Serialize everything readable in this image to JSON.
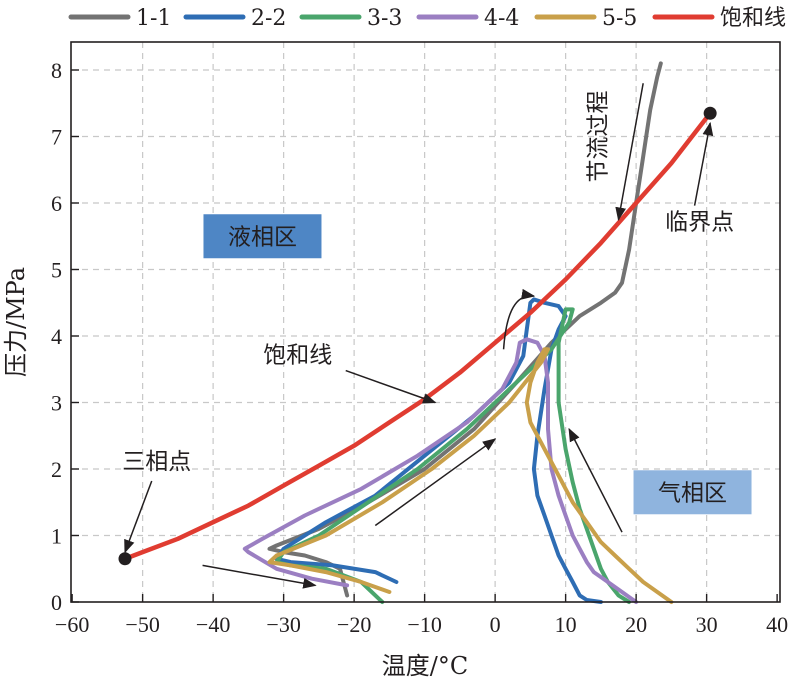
{
  "chart_data": {
    "type": "line",
    "title": "",
    "xlabel": "温度/°C",
    "ylabel": "压力/MPa",
    "xlim": [
      -60,
      40
    ],
    "ylim": [
      0,
      8.3
    ],
    "xticks": [
      -60,
      -50,
      -40,
      -30,
      -20,
      -10,
      0,
      10,
      20,
      30,
      40
    ],
    "yticks": [
      0,
      1,
      2,
      3,
      4,
      5,
      6,
      7,
      8
    ],
    "xtick_labels": [
      "−60",
      "−50",
      "−40",
      "−30",
      "−20",
      "−10",
      "0",
      "10",
      "20",
      "30",
      "40"
    ],
    "ytick_labels": [
      "0",
      "1",
      "2",
      "3",
      "4",
      "5",
      "6",
      "7",
      "8"
    ],
    "grid": true,
    "legend_position": "top",
    "series": [
      {
        "name": "1-1",
        "color": "#737373",
        "x": [
          -21,
          -21.5,
          -22,
          -24,
          -27,
          -30,
          -32,
          -31,
          -25,
          -18,
          -10,
          -3,
          3,
          8,
          12,
          15,
          17,
          18,
          19,
          20,
          21,
          22,
          23,
          23.5
        ],
        "y": [
          0.1,
          0.3,
          0.5,
          0.6,
          0.7,
          0.75,
          0.8,
          0.85,
          1.1,
          1.5,
          2.0,
          2.6,
          3.3,
          3.9,
          4.3,
          4.5,
          4.65,
          4.8,
          5.3,
          6.0,
          6.7,
          7.4,
          7.9,
          8.1
        ]
      },
      {
        "name": "2-2",
        "color": "#2e6db4",
        "x": [
          -14,
          -17,
          -23,
          -29,
          -31,
          -30,
          -24,
          -17,
          -10,
          -3,
          2,
          4,
          4.5,
          5,
          5.5,
          7,
          9,
          10,
          9,
          8,
          7,
          6,
          5.5,
          6,
          7,
          8,
          9,
          10,
          11,
          12,
          13,
          15
        ],
        "y": [
          0.3,
          0.45,
          0.55,
          0.6,
          0.65,
          0.8,
          1.2,
          1.6,
          2.2,
          2.8,
          3.3,
          3.7,
          4.1,
          4.5,
          4.55,
          4.5,
          4.45,
          4.3,
          4.1,
          3.8,
          3.2,
          2.5,
          2.0,
          1.6,
          1.3,
          1.0,
          0.7,
          0.5,
          0.3,
          0.1,
          0.03,
          0.0
        ]
      },
      {
        "name": "3-3",
        "color": "#4aa56c",
        "x": [
          -16,
          -19,
          -24,
          -29,
          -31,
          -30,
          -25,
          -18,
          -11,
          -4,
          1,
          5,
          8,
          10.5,
          11,
          10,
          9,
          9,
          10,
          11,
          12,
          13,
          14,
          15,
          16,
          17.5,
          19
        ],
        "y": [
          0.0,
          0.3,
          0.5,
          0.55,
          0.6,
          0.75,
          1.0,
          1.5,
          2.0,
          2.6,
          3.1,
          3.5,
          3.8,
          4.2,
          4.4,
          4.4,
          3.9,
          3.0,
          2.3,
          1.8,
          1.4,
          1.1,
          0.8,
          0.5,
          0.3,
          0.1,
          0.0
        ]
      },
      {
        "name": "4-4",
        "color": "#9b7fc2",
        "x": [
          -21,
          -26,
          -31,
          -35,
          -35.5,
          -33,
          -27,
          -19,
          -11,
          -4,
          1,
          3,
          3.5,
          4.5,
          6,
          7,
          7.5,
          7.5,
          8,
          9,
          10,
          11,
          12,
          13,
          14,
          16,
          18,
          20
        ],
        "y": [
          0.25,
          0.35,
          0.5,
          0.75,
          0.8,
          0.95,
          1.3,
          1.7,
          2.2,
          2.7,
          3.2,
          3.6,
          3.9,
          3.95,
          3.9,
          3.7,
          3.3,
          2.6,
          2.0,
          1.6,
          1.3,
          1.0,
          0.8,
          0.6,
          0.45,
          0.3,
          0.15,
          0.0
        ]
      },
      {
        "name": "5-5",
        "color": "#c9a04a",
        "x": [
          -15,
          -19,
          -24,
          -29,
          -32,
          -31,
          -24,
          -16,
          -9,
          -3,
          2,
          5,
          6.5,
          7.5,
          7,
          6,
          5,
          4.5,
          5,
          7,
          9,
          11,
          13,
          15,
          17,
          19,
          21,
          23,
          25
        ],
        "y": [
          0.15,
          0.3,
          0.45,
          0.55,
          0.6,
          0.7,
          1.0,
          1.5,
          2.0,
          2.5,
          3.0,
          3.4,
          3.6,
          3.8,
          3.8,
          3.6,
          3.3,
          3.0,
          2.7,
          2.3,
          1.9,
          1.5,
          1.2,
          0.9,
          0.7,
          0.5,
          0.3,
          0.15,
          0.0
        ]
      },
      {
        "name": "饱和线",
        "color": "#e03c31",
        "x": [
          -52.5,
          -50,
          -45,
          -40,
          -35,
          -30,
          -25,
          -20,
          -15,
          -10,
          -5,
          0,
          5,
          10,
          15,
          20,
          25,
          30.5
        ],
        "y": [
          0.65,
          0.75,
          0.95,
          1.2,
          1.45,
          1.75,
          2.05,
          2.35,
          2.7,
          3.05,
          3.45,
          3.9,
          4.35,
          4.85,
          5.4,
          6.0,
          6.6,
          7.35
        ]
      }
    ],
    "points": [
      {
        "name": "三相点",
        "x": -52.5,
        "y": 0.65
      },
      {
        "name": "临界点",
        "x": 30.5,
        "y": 7.35
      }
    ],
    "annotations": [
      {
        "name": "saturation",
        "text": "饱和线",
        "text_x": -28,
        "text_y": 3.6,
        "arrow_to_x": -8.5,
        "arrow_to_y": 3.0
      },
      {
        "name": "triple",
        "text": "三相点",
        "text_x": -48,
        "text_y": 2.0,
        "arrow_to_x": -52.5,
        "arrow_to_y": 0.75
      },
      {
        "name": "critical",
        "text": "临界点",
        "text_x": 29,
        "text_y": 5.6,
        "arrow_to_x": 30.5,
        "arrow_to_y": 7.2
      },
      {
        "name": "throttle",
        "text": "节流过程",
        "text_x": 14.5,
        "text_y": 7.0,
        "arrow_from_x": 21,
        "arrow_from_y": 7.8,
        "arrow_to_x": 17.5,
        "arrow_to_y": 5.75,
        "rotation": -90
      }
    ],
    "regions": [
      {
        "name": "liquid",
        "text": "液相区",
        "x": -33,
        "y": 5.5,
        "color": "#4e86c5"
      },
      {
        "name": "gas",
        "text": "气相区",
        "x": 28,
        "y": 1.65,
        "color": "#8fb4de"
      }
    ],
    "flow_arrows": [
      {
        "from": [
          -41.5,
          0.55
        ],
        "to": [
          -25.5,
          0.25
        ]
      },
      {
        "from": [
          -17,
          1.15
        ],
        "to": [
          0,
          2.45
        ]
      },
      {
        "from": [
          1.2,
          3.8
        ],
        "to": [
          5.5,
          4.6
        ],
        "curved": true
      },
      {
        "from": [
          18,
          1.05
        ],
        "to": [
          10.5,
          2.6
        ]
      }
    ]
  }
}
